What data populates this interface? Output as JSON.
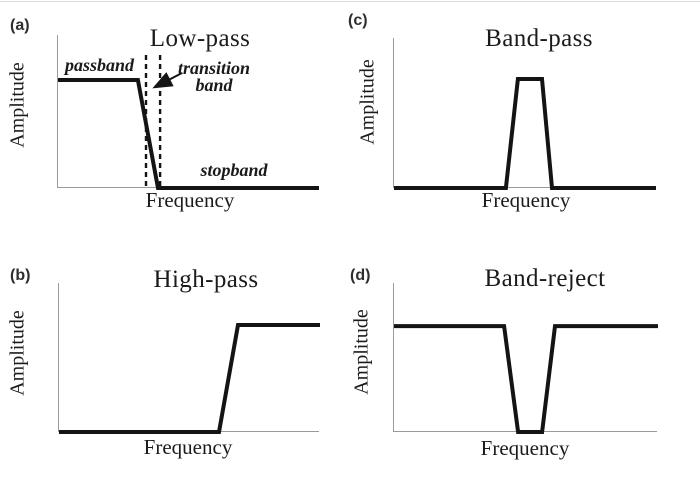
{
  "colors": {
    "line": "#141414",
    "axis": "#9a9a9a",
    "text": "#1b1b1b",
    "background": "#ffffff"
  },
  "panels": [
    {
      "tag": "(a)",
      "title": "Low-pass",
      "xlabel": "Frequency",
      "ylabel": "Amplitude",
      "annotations": {
        "passband": "passband",
        "transition_line1": "transition",
        "transition_line2": "band",
        "stopband": "stopband"
      }
    },
    {
      "tag": "(b)",
      "title": "High-pass",
      "xlabel": "Frequency",
      "ylabel": "Amplitude"
    },
    {
      "tag": "(c)",
      "title": "Band-pass",
      "xlabel": "Frequency",
      "ylabel": "Amplitude"
    },
    {
      "tag": "(d)",
      "title": "Band-reject",
      "xlabel": "Frequency",
      "ylabel": "Amplitude"
    }
  ],
  "chart_data": [
    {
      "type": "line",
      "panel_tag": "(a)",
      "title": "Low-pass",
      "xlabel": "Frequency",
      "ylabel": "Amplitude",
      "x": [
        0,
        0.306,
        0.383,
        1
      ],
      "amplitude": [
        1,
        1,
        0,
        0
      ],
      "ylim": [
        0,
        1
      ],
      "transition_band_x": [
        0.337,
        0.391
      ],
      "region_labels": [
        "passband",
        "transition band",
        "stopband"
      ],
      "axis_ticks": "none",
      "grid": false,
      "legend": "none"
    },
    {
      "type": "line",
      "panel_tag": "(b)",
      "title": "High-pass",
      "xlabel": "Frequency",
      "ylabel": "Amplitude",
      "x": [
        0,
        0.613,
        0.686,
        1
      ],
      "amplitude": [
        0,
        0,
        1,
        1
      ],
      "ylim": [
        0,
        1
      ],
      "axis_ticks": "none",
      "grid": false,
      "legend": "none"
    },
    {
      "type": "line",
      "panel_tag": "(c)",
      "title": "Band-pass",
      "xlabel": "Frequency",
      "ylabel": "Amplitude",
      "x": [
        0,
        0.427,
        0.473,
        0.565,
        0.603,
        1
      ],
      "amplitude": [
        0,
        0,
        1,
        1,
        0,
        0
      ],
      "ylim": [
        0,
        1
      ],
      "axis_ticks": "none",
      "grid": false,
      "legend": "none"
    },
    {
      "type": "line",
      "panel_tag": "(d)",
      "title": "Band-reject",
      "xlabel": "Frequency",
      "ylabel": "Amplitude",
      "x": [
        0,
        0.417,
        0.47,
        0.561,
        0.61,
        1
      ],
      "amplitude": [
        1,
        1,
        0,
        0,
        1,
        1
      ],
      "ylim": [
        0,
        1
      ],
      "axis_ticks": "none",
      "grid": false,
      "legend": "none"
    }
  ]
}
